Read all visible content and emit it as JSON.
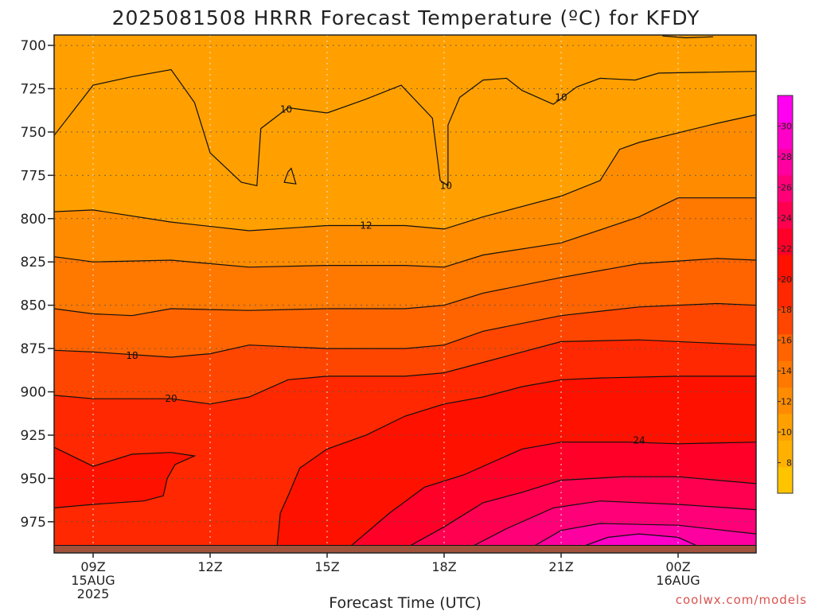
{
  "chart_data": {
    "type": "heatmap",
    "title": "2025081508 HRRR Forecast Temperature (ºC) for KFDY",
    "xlabel": "Forecast Time (UTC)",
    "ylabel": "",
    "credit": "coolwx.com/models",
    "x_ticks": [
      {
        "hour": 9,
        "lines": [
          "09Z",
          "15AUG",
          "2025"
        ]
      },
      {
        "hour": 12,
        "lines": [
          "12Z"
        ]
      },
      {
        "hour": 15,
        "lines": [
          "15Z"
        ]
      },
      {
        "hour": 18,
        "lines": [
          "18Z"
        ]
      },
      {
        "hour": 21,
        "lines": [
          "21Z"
        ]
      },
      {
        "hour": 24,
        "lines": [
          "00Z",
          "16AUG"
        ]
      }
    ],
    "xlim": [
      8,
      26
    ],
    "y_ticks": [
      700,
      725,
      750,
      775,
      800,
      825,
      850,
      875,
      900,
      925,
      950,
      975
    ],
    "ylim": [
      694,
      993
    ],
    "ground_pressure": 990,
    "colorbar": {
      "ticks": [
        8,
        10,
        12,
        14,
        16,
        18,
        20,
        22,
        24,
        26,
        28,
        30
      ],
      "bounds": [
        6,
        32
      ],
      "colors": [
        "#ffc400",
        "#ffb000",
        "#ffa000",
        "#ff8c00",
        "#ff7800",
        "#ff6400",
        "#ff4600",
        "#ff2800",
        "#ff1100",
        "#ff0028",
        "#ff0050",
        "#ff0078",
        "#ff00a0",
        "#ff00c8",
        "#ff00f0"
      ]
    },
    "levels": [
      {
        "value": 10,
        "color": "#ffa000",
        "points": [
          [
            8,
            752
          ],
          [
            9,
            723
          ],
          [
            10,
            718
          ],
          [
            11,
            714
          ],
          [
            11.6,
            733
          ],
          [
            12,
            762
          ],
          [
            12.8,
            779
          ],
          [
            13.2,
            781
          ],
          [
            13.3,
            748
          ],
          [
            14,
            736
          ],
          [
            15,
            739
          ],
          [
            16,
            731
          ],
          [
            16.9,
            723
          ],
          [
            17.7,
            742
          ],
          [
            17.9,
            778
          ],
          [
            18.1,
            781
          ],
          [
            18.1,
            746
          ],
          [
            18.4,
            730
          ],
          [
            19,
            720
          ],
          [
            19.6,
            719
          ],
          [
            20,
            726
          ],
          [
            20.8,
            734
          ],
          [
            21.4,
            724
          ],
          [
            22,
            719
          ],
          [
            22.9,
            720
          ],
          [
            23.5,
            716
          ],
          [
            26,
            715
          ]
        ]
      },
      {
        "value": 12,
        "color": "#ff8c00",
        "points": [
          [
            8,
            796
          ],
          [
            9,
            795
          ],
          [
            11,
            802
          ],
          [
            13,
            807
          ],
          [
            15,
            804
          ],
          [
            17,
            804
          ],
          [
            18,
            806
          ],
          [
            19,
            799
          ],
          [
            21,
            787
          ],
          [
            22,
            778
          ],
          [
            22.5,
            760
          ],
          [
            23,
            756
          ],
          [
            25,
            745
          ],
          [
            26,
            740
          ]
        ]
      },
      {
        "value": 14,
        "color": "#ff7800",
        "points": [
          [
            8,
            822
          ],
          [
            9,
            825
          ],
          [
            11,
            824
          ],
          [
            13,
            828
          ],
          [
            15,
            827
          ],
          [
            17,
            827
          ],
          [
            18,
            828
          ],
          [
            19,
            821
          ],
          [
            21,
            814
          ],
          [
            23,
            799
          ],
          [
            24,
            788
          ],
          [
            26,
            788
          ]
        ]
      },
      {
        "value": 16,
        "color": "#ff6400",
        "points": [
          [
            8,
            852
          ],
          [
            9,
            855
          ],
          [
            10,
            856
          ],
          [
            11,
            852
          ],
          [
            13,
            853
          ],
          [
            15,
            852
          ],
          [
            17,
            852
          ],
          [
            18,
            850
          ],
          [
            19,
            843
          ],
          [
            21,
            834
          ],
          [
            23,
            826
          ],
          [
            25,
            823
          ],
          [
            26,
            824
          ]
        ]
      },
      {
        "value": 18,
        "color": "#ff4600",
        "points": [
          [
            8,
            876
          ],
          [
            9,
            877
          ],
          [
            11,
            880
          ],
          [
            12,
            878
          ],
          [
            13,
            873
          ],
          [
            15,
            875
          ],
          [
            17,
            875
          ],
          [
            18,
            873
          ],
          [
            19,
            865
          ],
          [
            21,
            856
          ],
          [
            23,
            851
          ],
          [
            25,
            849
          ],
          [
            26,
            850
          ]
        ]
      },
      {
        "value": 20,
        "color": "#ff2800",
        "points": [
          [
            8,
            902
          ],
          [
            9,
            904
          ],
          [
            11,
            904
          ],
          [
            12,
            907
          ],
          [
            13,
            903
          ],
          [
            14,
            893
          ],
          [
            15,
            891
          ],
          [
            17,
            891
          ],
          [
            18,
            889
          ],
          [
            19,
            883
          ],
          [
            20,
            877
          ],
          [
            21,
            871
          ],
          [
            23,
            870
          ],
          [
            26,
            873
          ]
        ]
      },
      {
        "value": 22,
        "color": "#ff1100",
        "points": [
          [
            8,
            932
          ],
          [
            9,
            943
          ],
          [
            10,
            936
          ],
          [
            11,
            935
          ],
          [
            11.6,
            937
          ],
          [
            11.1,
            942
          ],
          [
            10.9,
            950
          ],
          [
            10.8,
            960
          ],
          [
            10.3,
            963
          ],
          [
            9,
            965
          ],
          [
            8,
            967
          ],
          [
            8,
            993
          ],
          [
            13,
            993
          ],
          [
            13.7,
            993
          ],
          [
            13.8,
            970
          ],
          [
            14,
            960
          ],
          [
            14.3,
            944
          ],
          [
            15,
            933
          ],
          [
            16,
            925
          ],
          [
            17,
            914
          ],
          [
            18,
            907
          ],
          [
            19,
            903
          ],
          [
            20,
            897
          ],
          [
            21,
            893
          ],
          [
            22,
            892
          ],
          [
            24,
            891
          ],
          [
            26,
            891
          ]
        ]
      },
      {
        "value": 24,
        "color": "#ff0028",
        "points": [
          [
            15.4,
            993
          ],
          [
            16.6,
            970
          ],
          [
            17.5,
            955
          ],
          [
            18.5,
            948
          ],
          [
            20,
            933
          ],
          [
            21,
            929
          ],
          [
            22.7,
            929
          ],
          [
            24,
            930
          ],
          [
            26,
            929
          ]
        ]
      },
      {
        "value": 26,
        "color": "#ff0050",
        "points": [
          [
            16.8,
            993
          ],
          [
            18,
            978
          ],
          [
            19,
            964
          ],
          [
            20,
            958
          ],
          [
            21,
            951
          ],
          [
            22.6,
            949
          ],
          [
            24,
            949
          ],
          [
            26,
            953
          ]
        ]
      },
      {
        "value": 28,
        "color": "#ff0078",
        "points": [
          [
            18.4,
            993
          ],
          [
            19.6,
            979
          ],
          [
            20.8,
            967
          ],
          [
            22,
            963
          ],
          [
            24,
            965
          ],
          [
            26,
            968
          ]
        ]
      },
      {
        "value": 30,
        "color": "#ff00a0",
        "points": [
          [
            20,
            993
          ],
          [
            21,
            980
          ],
          [
            22,
            976
          ],
          [
            24,
            977
          ],
          [
            26,
            982
          ]
        ]
      },
      {
        "value": 31,
        "color": "#ff00c8",
        "points": [
          [
            21.1,
            993
          ],
          [
            22.2,
            984
          ],
          [
            23,
            982
          ],
          [
            24,
            984
          ],
          [
            24.6,
            990
          ],
          [
            26,
            991
          ]
        ]
      }
    ],
    "top_contour": {
      "value": 8,
      "points": [
        [
          23.6,
          694.5
        ],
        [
          24.2,
          695.6
        ],
        [
          24.9,
          695
        ]
      ]
    },
    "closed_contours": [
      {
        "value": 10,
        "points": [
          [
            14,
            773
          ],
          [
            13.9,
            779
          ],
          [
            14.2,
            780
          ],
          [
            14.08,
            771
          ],
          [
            14,
            773
          ]
        ]
      }
    ],
    "contour_labels": [
      {
        "x": 13.95,
        "y": 737,
        "text": "10"
      },
      {
        "x": 18.05,
        "y": 781,
        "text": "10"
      },
      {
        "x": 21,
        "y": 730,
        "text": "10"
      },
      {
        "x": 16,
        "y": 804,
        "text": "12"
      },
      {
        "x": 10,
        "y": 879,
        "text": "18"
      },
      {
        "x": 11,
        "y": 904,
        "text": "20"
      },
      {
        "x": 23,
        "y": 928,
        "text": "24"
      }
    ]
  }
}
